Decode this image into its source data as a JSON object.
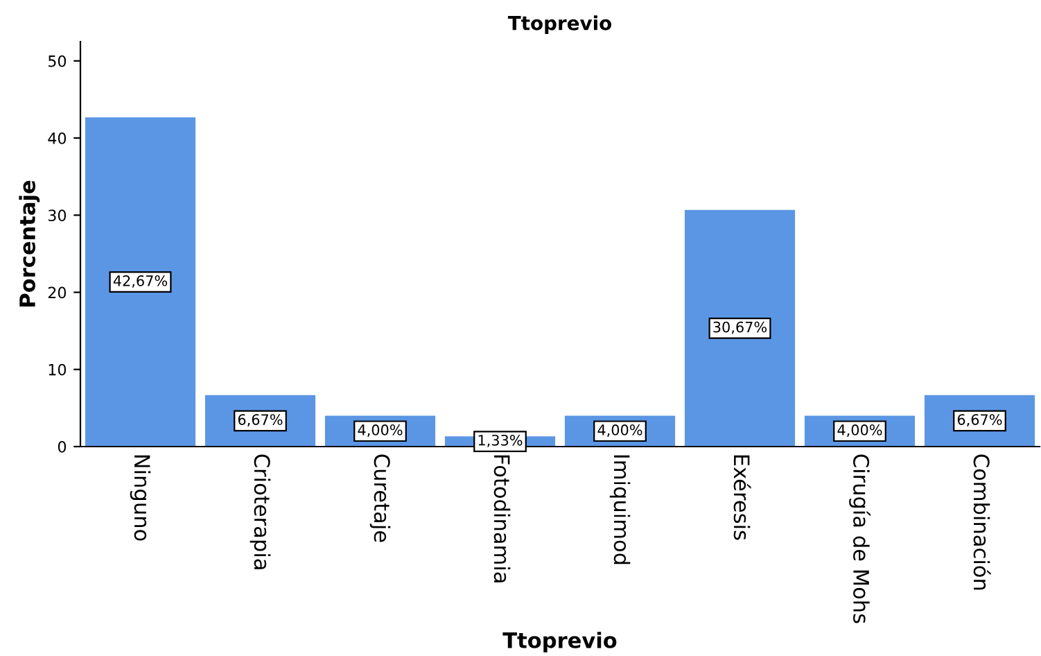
{
  "chart_data": {
    "type": "bar",
    "title": "Ttoprevio",
    "xlabel": "Ttoprevio",
    "ylabel": "Porcentaje",
    "categories": [
      "Ninguno",
      "Crioterapia",
      "Curetaje",
      "Fotodinamia",
      "Imiquimod",
      "Exéresis",
      "Cirugía de Mohs",
      "Combinación"
    ],
    "values": [
      42.67,
      6.67,
      4.0,
      1.33,
      4.0,
      30.67,
      4.0,
      6.67
    ],
    "value_labels": [
      "42,67%",
      "6,67%",
      "4,00%",
      "1,33%",
      "4,00%",
      "30,67%",
      "4,00%",
      "6,67%"
    ],
    "color": "#5b96e4",
    "ylim": [
      0,
      52.5
    ],
    "yticks": [
      0,
      10,
      20,
      30,
      40,
      50
    ],
    "grid": false,
    "legend": false
  }
}
